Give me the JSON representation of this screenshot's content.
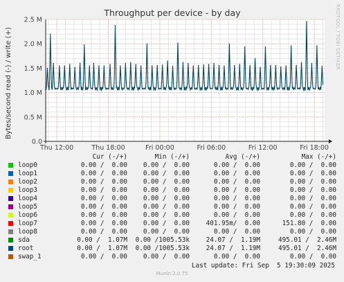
{
  "chart_data": {
    "type": "line",
    "title": "Throughput per device - by day",
    "ylabel": "Bytes/second read (-) / write (+)",
    "ylim": [
      0,
      2500000
    ],
    "yticks": [
      {
        "value": 0,
        "label": "0.0"
      },
      {
        "value": 500000,
        "label": "0.5 M"
      },
      {
        "value": 1000000,
        "label": "1.0 M"
      },
      {
        "value": 1500000,
        "label": "1.5 M"
      },
      {
        "value": 2000000,
        "label": "2.0 M"
      },
      {
        "value": 2500000,
        "label": "2.5 M"
      }
    ],
    "xlim_hours": [
      -1.3,
      31.2
    ],
    "xticks": [
      {
        "value": 0,
        "label": "Thu 12:00"
      },
      {
        "value": 6,
        "label": "Thu 18:00"
      },
      {
        "value": 12,
        "label": "Fri 00:00"
      },
      {
        "value": 18,
        "label": "Fri 06:00"
      },
      {
        "value": 24,
        "label": "Fri 12:00"
      },
      {
        "value": 30,
        "label": "Fri 18:00"
      }
    ],
    "grid": true,
    "series": [
      {
        "name": "root",
        "color": "#00455a",
        "baseline": 1080000,
        "spike_peaks": [
          [
            -1.1,
            1500000
          ],
          [
            -0.75,
            2200000
          ],
          [
            -0.4,
            1600000
          ],
          [
            0.3,
            1550000
          ],
          [
            0.9,
            1550000
          ],
          [
            1.5,
            1580000
          ],
          [
            2.1,
            1520000
          ],
          [
            2.7,
            1600000
          ],
          [
            3.2,
            1980000
          ],
          [
            3.8,
            1550000
          ],
          [
            4.3,
            1600000
          ],
          [
            4.9,
            1550000
          ],
          [
            5.5,
            1550000
          ],
          [
            6.2,
            1580000
          ],
          [
            6.8,
            2380000
          ],
          [
            7.4,
            1550000
          ],
          [
            8.0,
            1600000
          ],
          [
            8.6,
            1620000
          ],
          [
            9.2,
            1580000
          ],
          [
            9.8,
            1550000
          ],
          [
            10.5,
            2000000
          ],
          [
            11.1,
            1550000
          ],
          [
            11.7,
            1560000
          ],
          [
            12.3,
            1570000
          ],
          [
            12.9,
            1650000
          ],
          [
            13.5,
            1540000
          ],
          [
            14.1,
            2020000
          ],
          [
            14.7,
            1620000
          ],
          [
            15.3,
            1600000
          ],
          [
            15.9,
            1550000
          ],
          [
            16.5,
            1560000
          ],
          [
            17.1,
            1570000
          ],
          [
            17.7,
            1580000
          ],
          [
            18.3,
            1600000
          ],
          [
            18.9,
            1560000
          ],
          [
            19.5,
            1550000
          ],
          [
            20.1,
            2000000
          ],
          [
            20.7,
            1560000
          ],
          [
            21.3,
            1580000
          ],
          [
            21.9,
            1940000
          ],
          [
            22.5,
            1560000
          ],
          [
            23.1,
            1700000
          ],
          [
            23.7,
            1520000
          ],
          [
            24.3,
            1940000
          ],
          [
            24.9,
            1560000
          ],
          [
            25.5,
            1560000
          ],
          [
            26.1,
            1530000
          ],
          [
            26.7,
            1550000
          ],
          [
            27.3,
            1960000
          ],
          [
            27.9,
            1560000
          ],
          [
            28.5,
            1620000
          ],
          [
            29.1,
            2460000
          ],
          [
            29.7,
            1600000
          ],
          [
            30.3,
            1960000
          ],
          [
            30.9,
            1540000
          ]
        ]
      }
    ]
  },
  "legend": {
    "headers": {
      "cur": "Cur (-/+)",
      "min": "Min (-/+)",
      "avg": "Avg (-/+)",
      "max": "Max (-/+)"
    },
    "rows": [
      {
        "name": "loop0",
        "color": "#00cc00",
        "cur": "0.00 /  0.00",
        "min": "0.00 /  0.00",
        "avg": "0.00 /  0.00",
        "max": "0.00 /  0.00"
      },
      {
        "name": "loop1",
        "color": "#0066b3",
        "cur": "0.00 /  0.00",
        "min": "0.00 /  0.00",
        "avg": "0.00 /  0.00",
        "max": "0.00 /  0.00"
      },
      {
        "name": "loop2",
        "color": "#ff8000",
        "cur": "0.00 /  0.00",
        "min": "0.00 /  0.00",
        "avg": "0.00 /  0.00",
        "max": "0.00 /  0.00"
      },
      {
        "name": "loop3",
        "color": "#ffcc00",
        "cur": "0.00 /  0.00",
        "min": "0.00 /  0.00",
        "avg": "0.00 /  0.00",
        "max": "0.00 /  0.00"
      },
      {
        "name": "loop4",
        "color": "#330099",
        "cur": "0.00 /  0.00",
        "min": "0.00 /  0.00",
        "avg": "0.00 /  0.00",
        "max": "0.00 /  0.00"
      },
      {
        "name": "loop5",
        "color": "#990099",
        "cur": "0.00 /  0.00",
        "min": "0.00 /  0.00",
        "avg": "0.00 /  0.00",
        "max": "0.00 /  0.00"
      },
      {
        "name": "loop6",
        "color": "#ccff00",
        "cur": "0.00 /  0.00",
        "min": "0.00 /  0.00",
        "avg": "0.00 /  0.00",
        "max": "0.00 /  0.00"
      },
      {
        "name": "loop7",
        "color": "#ff0000",
        "cur": "0.00 /  0.00",
        "min": "0.00 /  0.00",
        "avg": "401.95m/  0.00",
        "max": "151.80 /  0.00"
      },
      {
        "name": "loop8",
        "color": "#808080",
        "cur": "0.00 /  0.00",
        "min": "0.00 /  0.00",
        "avg": "0.00 /  0.00",
        "max": "0.00 /  0.00"
      },
      {
        "name": "sda",
        "color": "#008f00",
        "cur": "0.00 /  1.07M",
        "min": "0.00 /1005.53k",
        "avg": "24.07 /  1.19M",
        "max": "495.01 /  2.46M"
      },
      {
        "name": "root",
        "color": "#00487d",
        "cur": "0.00 /  1.07M",
        "min": "0.00 /1005.53k",
        "avg": "24.07 /  1.19M",
        "max": "495.01 /  2.46M"
      },
      {
        "name": "swap_1",
        "color": "#b35a00",
        "cur": "0.00 /  0.00",
        "min": "0.00 /  0.00",
        "avg": "0.00 /  0.00",
        "max": "0.00 /  0.00"
      }
    ]
  },
  "last_update": "Last update: Fri Sep  5 19:30:09 2025",
  "footer": "Munin 2.0.75",
  "side_text": "RRDTOOL / TOBI OETIKER"
}
